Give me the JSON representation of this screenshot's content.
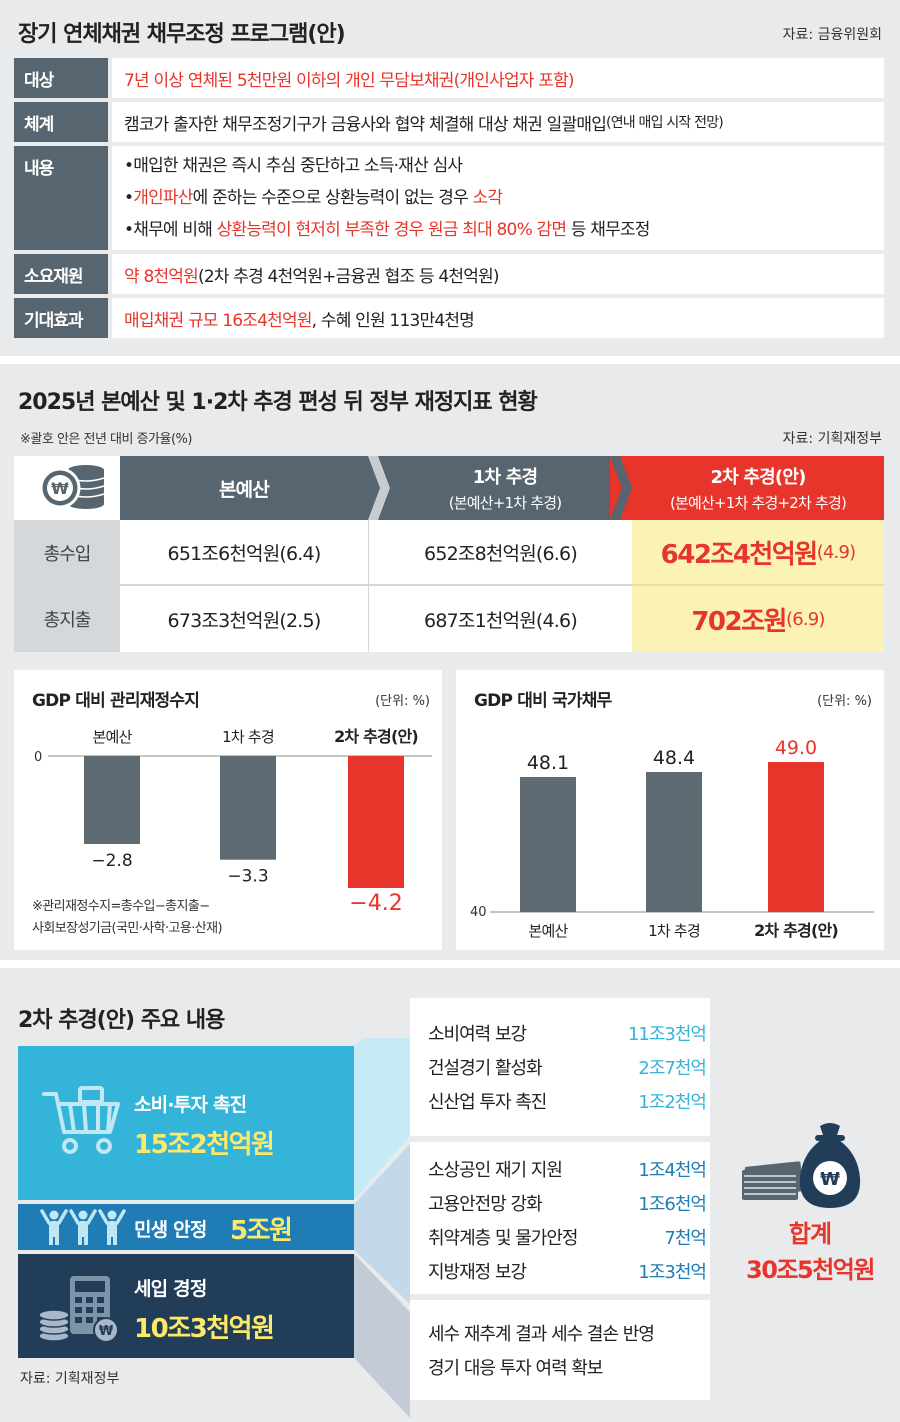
{
  "program": {
    "title": "장기 연체채권 채무조정 프로그램(안)",
    "source": "자료: 금융위원회",
    "rows": {
      "target": {
        "label": "대상",
        "text": "7년 이상 연체된 5천만원 이하의 개인 무담보채권(개인사업자 포함)"
      },
      "system": {
        "label": "체계",
        "text": "캠코가 출자한 채무조정기구가 금융사와 협약 체결해 대상 채권 일괄매입",
        "note": "(연내 매입 시작 전망)"
      },
      "content": {
        "label": "내용",
        "line1": "•매입한 채권은 즉시 추심 중단하고 소득·재산 심사",
        "line2_bullet": "•",
        "line2_red1": "개인파산",
        "line2_mid": "에 준하는 수준으로 상환능력이 없는 경우 ",
        "line2_red2": "소각",
        "line3_pre": "•채무에 비해 ",
        "line3_red": "상환능력이 현저히 부족한 경우 원금 최대 80% 감면",
        "line3_post": " 등 채무조정"
      },
      "funding": {
        "label": "소요재원",
        "red": "약 8천억원",
        "rest": "(2차 추경 4천억원+금융권 협조 등 4천억원)"
      },
      "effect": {
        "label": "기대효과",
        "red": "매입채권 규모 16조4천억원",
        "rest": ", 수혜 인원 113만4천명"
      }
    }
  },
  "fiscal": {
    "title": "2025년 본예산 및 1·2차 추경 편성 뒤 정부 재정지표 현황",
    "note": "※괄호 안은 전년 대비 증가율(%)",
    "source": "자료: 기획재정부",
    "headers": {
      "main": "본예산",
      "first": "1차 추경",
      "first_sub": "(본예산+1차 추경)",
      "second": "2차 추경(안)",
      "second_sub": "(본예산+1차 추경+2차 추경)"
    },
    "rows": {
      "revenue": {
        "label": "총수입",
        "main": "651조6천억원(6.4)",
        "first": "652조8천억원(6.6)",
        "second_amt": "642조4천억원",
        "second_rate": "(4.9)"
      },
      "expenditure": {
        "label": "총지출",
        "main": "673조3천억원(2.5)",
        "first": "687조1천억원(4.6)",
        "second_amt": "702조원",
        "second_rate": "(6.9)"
      }
    },
    "balance_chart": {
      "title": "GDP 대비 관리재정수지",
      "unit": "(단위: %)",
      "zero_label": "0",
      "note1": "※관리재정수지=총수입−총지출−",
      "note2": "사회보장성기금(국민·사학·고용·산재)"
    },
    "debt_chart": {
      "title": "GDP 대비 국가채무",
      "unit": "(단위: %)",
      "base_label": "40"
    }
  },
  "chart_data": [
    {
      "type": "bar",
      "title": "GDP 대비 관리재정수지",
      "categories": [
        "본예산",
        "1차 추경",
        "2차 추경(안)"
      ],
      "values": [
        -2.8,
        -3.3,
        -4.2
      ],
      "value_labels": [
        "−2.8",
        "−3.3",
        "−4.2"
      ],
      "ylim": [
        -4.2,
        0
      ],
      "unit": "%",
      "colors": [
        "#5e6b73",
        "#5e6b73",
        "#e8352b"
      ]
    },
    {
      "type": "bar",
      "title": "GDP 대비 국가채무",
      "categories": [
        "본예산",
        "1차 추경",
        "2차 추경(안)"
      ],
      "values": [
        48.1,
        48.4,
        49.0
      ],
      "value_labels": [
        "48.1",
        "48.4",
        "49.0"
      ],
      "ylim": [
        40,
        49.0
      ],
      "unit": "%",
      "colors": [
        "#5e6b73",
        "#5e6b73",
        "#e8352b"
      ]
    }
  ],
  "supplementary": {
    "title": "2차 추경(안) 주요 내용",
    "source": "자료: 기획재정부",
    "categories": [
      {
        "name": "소비·투자 촉진",
        "amount": "15조2천억원"
      },
      {
        "name": "민생 안정",
        "amount": "5조원"
      },
      {
        "name": "세입 경정",
        "amount": "10조3천억원"
      }
    ],
    "group1": [
      {
        "label": "소비여력 보강",
        "value": "11조3천억"
      },
      {
        "label": "건설경기 활성화",
        "value": "2조7천억"
      },
      {
        "label": "신산업 투자 촉진",
        "value": "1조2천억"
      }
    ],
    "group2": [
      {
        "label": "소상공인 재기 지원",
        "value": "1조4천억"
      },
      {
        "label": "고용안전망 강화",
        "value": "1조6천억"
      },
      {
        "label": "취약계층 및 물가안정",
        "value": "7천억"
      },
      {
        "label": "지방재정 보강",
        "value": "1조3천억"
      }
    ],
    "group3": [
      "세수 재추계 결과 세수 결손 반영",
      "경기 대응 투자 여력 확보"
    ],
    "total_label": "합계",
    "total_value": "30조5천억원",
    "colors": {
      "cat1": "#34b4d9",
      "cat2": "#1f7cb5",
      "cat3": "#213d58",
      "amount": "#fbe96a",
      "accent": "#e8352b"
    }
  }
}
